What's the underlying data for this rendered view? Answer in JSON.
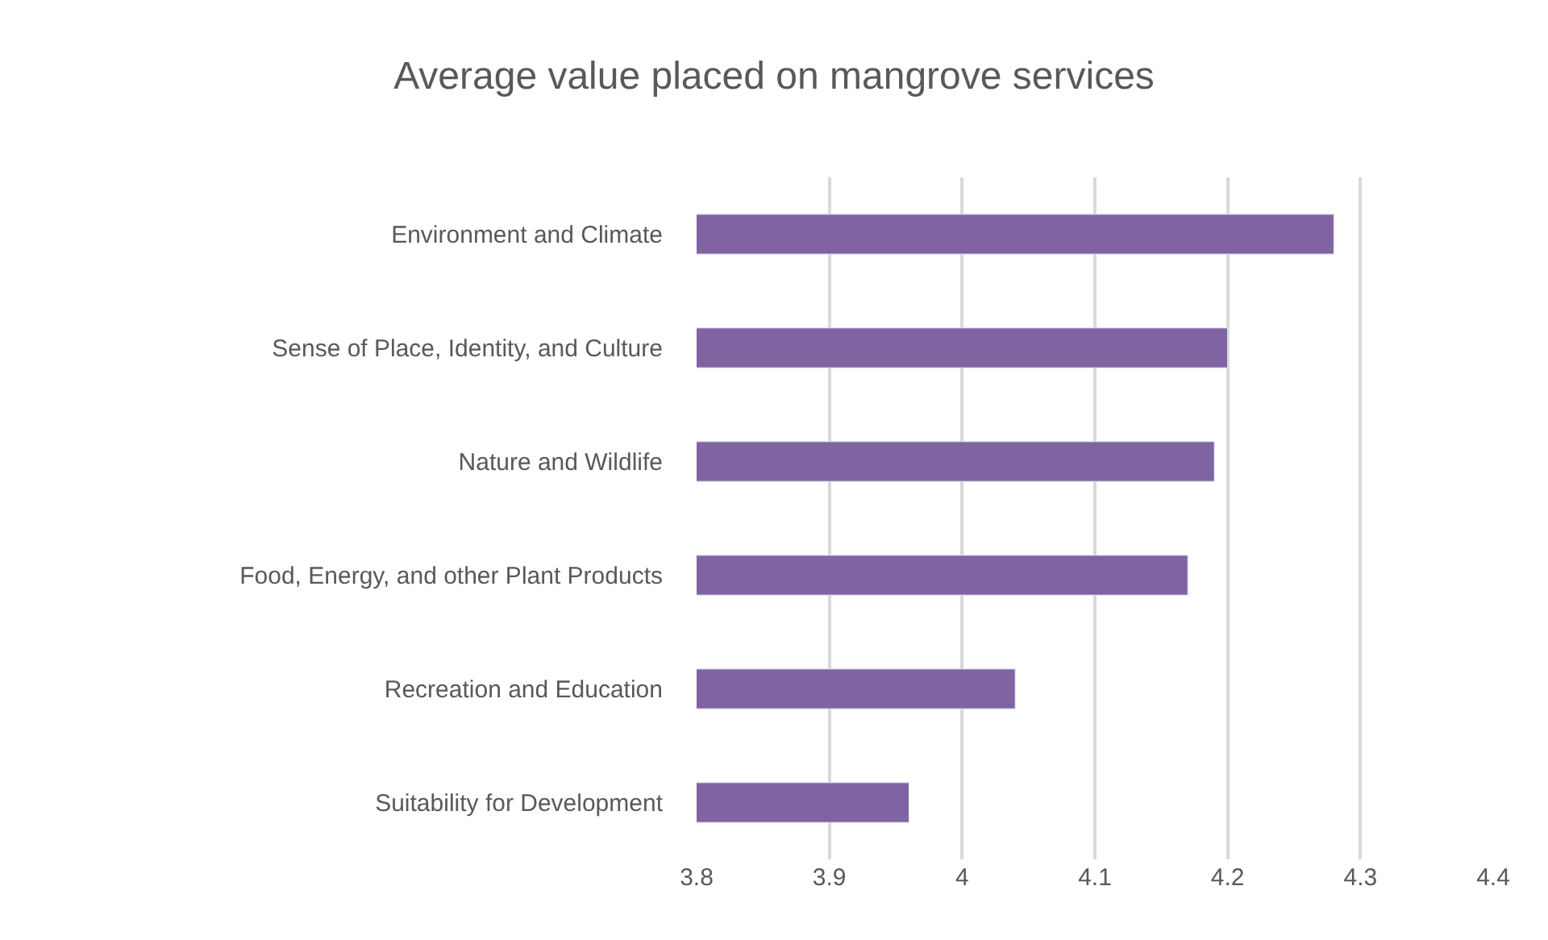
{
  "chart_data": {
    "type": "bar",
    "orientation": "horizontal",
    "title": "Average value placed on mangrove services",
    "categories": [
      "Environment and Climate",
      "Sense of Place, Identity, and Culture",
      "Nature and Wildlife",
      "Food, Energy, and other Plant Products",
      "Recreation and Education",
      "Suitability for Development"
    ],
    "values": [
      4.28,
      4.2,
      4.19,
      4.17,
      4.04,
      3.96
    ],
    "color": "#8064a2",
    "xlim": [
      3.8,
      4.4
    ],
    "xticks": [
      3.8,
      3.9,
      4,
      4.1,
      4.2,
      4.3,
      4.4
    ],
    "grid": "x",
    "legend": false
  }
}
